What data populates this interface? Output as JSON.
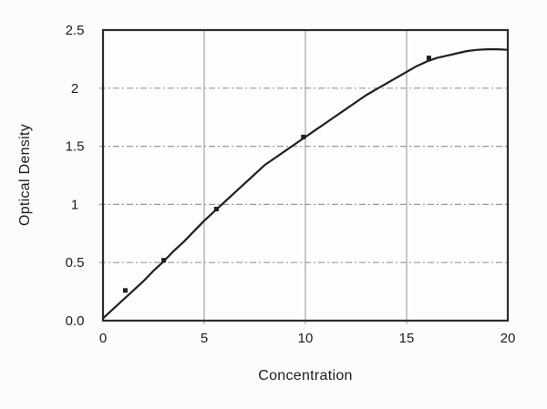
{
  "figure": {
    "xlabel": "Concentration",
    "ylabel": "Optical Density"
  },
  "chart_data": {
    "type": "scatter",
    "title": "",
    "xlabel": "Concentration",
    "ylabel": "Optical Density",
    "xlim": [
      0,
      20
    ],
    "ylim": [
      0,
      2.5
    ],
    "x_ticks": [
      {
        "v": 0,
        "label": "0"
      },
      {
        "v": 5,
        "label": "5"
      },
      {
        "v": 10,
        "label": "10"
      },
      {
        "v": 15,
        "label": "15"
      },
      {
        "v": 20,
        "label": "20"
      }
    ],
    "y_ticks": [
      {
        "v": 0,
        "label": "0.0"
      },
      {
        "v": 0.5,
        "label": "0.5"
      },
      {
        "v": 1,
        "label": "1"
      },
      {
        "v": 1.5,
        "label": "1.5"
      },
      {
        "v": 2,
        "label": "2"
      },
      {
        "v": 2.5,
        "label": "2.5"
      }
    ],
    "grid": {
      "vertical_solid_x": [
        5,
        10,
        15
      ],
      "horizontal_dashed_y": [
        0.5,
        1,
        1.5,
        2
      ]
    },
    "legend": null,
    "series": [
      {
        "name": "standard-points",
        "type": "scatter",
        "marker": "square",
        "points": [
          [
            1.1,
            0.26
          ],
          [
            3.0,
            0.52
          ],
          [
            5.6,
            0.96
          ],
          [
            9.9,
            1.58
          ],
          [
            16.1,
            2.26
          ]
        ]
      },
      {
        "name": "fitted-curve",
        "type": "line",
        "points": [
          [
            0,
            0.02
          ],
          [
            0.5,
            0.1
          ],
          [
            1,
            0.18
          ],
          [
            1.5,
            0.26
          ],
          [
            2,
            0.34
          ],
          [
            2.5,
            0.43
          ],
          [
            3,
            0.51
          ],
          [
            3.5,
            0.6
          ],
          [
            4,
            0.68
          ],
          [
            4.5,
            0.77
          ],
          [
            5,
            0.86
          ],
          [
            5.5,
            0.94
          ],
          [
            6,
            1.02
          ],
          [
            6.5,
            1.1
          ],
          [
            7,
            1.18
          ],
          [
            7.5,
            1.26
          ],
          [
            8,
            1.34
          ],
          [
            8.5,
            1.4
          ],
          [
            9,
            1.46
          ],
          [
            9.5,
            1.52
          ],
          [
            10,
            1.58
          ],
          [
            10.5,
            1.64
          ],
          [
            11,
            1.7
          ],
          [
            11.5,
            1.76
          ],
          [
            12,
            1.82
          ],
          [
            12.5,
            1.88
          ],
          [
            13,
            1.94
          ],
          [
            13.5,
            1.99
          ],
          [
            14,
            2.04
          ],
          [
            14.5,
            2.09
          ],
          [
            15,
            2.14
          ],
          [
            15.5,
            2.19
          ],
          [
            16,
            2.23
          ],
          [
            16.5,
            2.26
          ],
          [
            17,
            2.28
          ],
          [
            17.5,
            2.3
          ],
          [
            18,
            2.32
          ],
          [
            18.5,
            2.33
          ],
          [
            19,
            2.335
          ],
          [
            19.5,
            2.335
          ],
          [
            20,
            2.33
          ]
        ]
      }
    ],
    "colors": {
      "curve": "#1f1f1f",
      "point": "#1f1f1f",
      "grid_solid": "#a6a6a6",
      "grid_dashed": "#9a9a9a",
      "frame": "#2d2d2d",
      "text": "#1c1c1c",
      "plot_background": "#fdfdfc"
    }
  }
}
